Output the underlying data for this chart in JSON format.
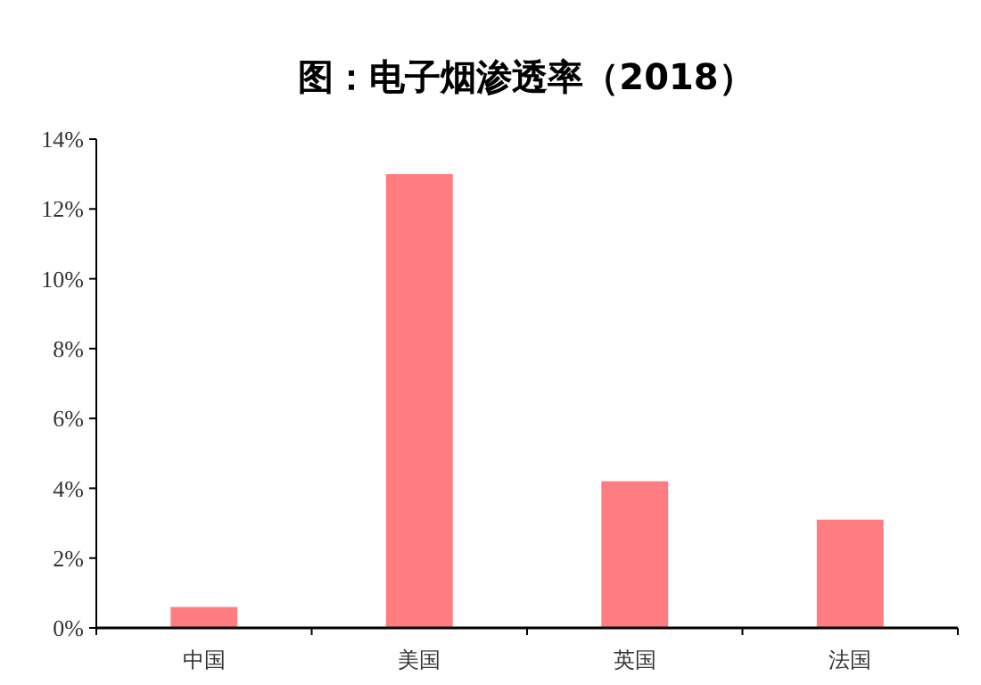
{
  "chart_data": {
    "type": "bar",
    "title": "图：电子烟渗透率（2018）",
    "categories": [
      "中国",
      "美国",
      "英国",
      "法国"
    ],
    "values": [
      0.6,
      13,
      4.2,
      3.1
    ],
    "color": "#ff7c80",
    "ylim": [
      0,
      14
    ],
    "yticks": [
      {
        "value": 0,
        "label": "0%"
      },
      {
        "value": 2,
        "label": "2%"
      },
      {
        "value": 4,
        "label": "4%"
      },
      {
        "value": 6,
        "label": "6%"
      },
      {
        "value": 8,
        "label": "8%"
      },
      {
        "value": 10,
        "label": "10%"
      },
      {
        "value": 12,
        "label": "12%"
      },
      {
        "value": 14,
        "label": "14%"
      }
    ],
    "grid": false
  }
}
